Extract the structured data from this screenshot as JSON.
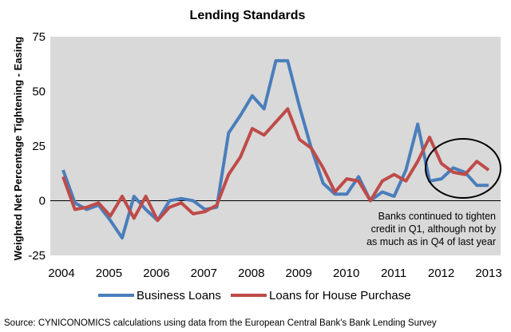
{
  "chart_data": {
    "type": "line",
    "title": "Lending Standards",
    "ylabel": "Weighted Net Percentage Tightening - Easing",
    "xlabel": "",
    "xlim": [
      2004,
      2013
    ],
    "ylim": [
      -25,
      75
    ],
    "x_ticks": [
      "2004",
      "2005",
      "2006",
      "2007",
      "2008",
      "2009",
      "2010",
      "2011",
      "2012",
      "2013"
    ],
    "y_ticks": [
      "-25",
      "0",
      "25",
      "50",
      "75"
    ],
    "grid": "none",
    "legend_position": "bottom",
    "annotation": {
      "lines": [
        "Banks continued to tighten",
        "credit in Q1, although not by",
        "as much as in Q4 of last year"
      ]
    },
    "source": "Source: CYNICONOMICS calculations using data from the European Central Bank's Bank Lending Survey",
    "series": [
      {
        "name": "Business Loans",
        "color": "#4a7ebb",
        "x": [
          2004.0,
          2004.25,
          2004.5,
          2004.75,
          2005.0,
          2005.25,
          2005.5,
          2005.75,
          2006.0,
          2006.25,
          2006.5,
          2006.75,
          2007.0,
          2007.25,
          2007.5,
          2007.75,
          2008.0,
          2008.25,
          2008.5,
          2008.75,
          2009.0,
          2009.25,
          2009.5,
          2009.75,
          2010.0,
          2010.25,
          2010.5,
          2010.75,
          2011.0,
          2011.25,
          2011.5,
          2011.75,
          2012.0,
          2012.25,
          2012.5,
          2012.75,
          2013.0
        ],
        "y": [
          14,
          -1,
          -4,
          -2,
          -9,
          -17,
          2,
          -4,
          -9,
          0,
          1,
          0,
          -4,
          -3,
          31,
          39,
          48,
          42,
          64,
          64,
          43,
          24,
          8,
          3,
          3,
          11,
          0,
          4,
          2,
          14,
          35,
          9,
          10,
          15,
          13,
          7,
          7
        ]
      },
      {
        "name": "Loans for House Purchase",
        "color": "#be4b48",
        "x": [
          2004.0,
          2004.25,
          2004.5,
          2004.75,
          2005.0,
          2005.25,
          2005.5,
          2005.75,
          2006.0,
          2006.25,
          2006.5,
          2006.75,
          2007.0,
          2007.25,
          2007.5,
          2007.75,
          2008.0,
          2008.25,
          2008.5,
          2008.75,
          2009.0,
          2009.25,
          2009.5,
          2009.75,
          2010.0,
          2010.25,
          2010.5,
          2010.75,
          2011.0,
          2011.25,
          2011.5,
          2011.75,
          2012.0,
          2012.25,
          2012.5,
          2012.75,
          2013.0
        ],
        "y": [
          11,
          -4,
          -3,
          -1,
          -7,
          2,
          -8,
          2,
          -9,
          -3,
          -1,
          -6,
          -5,
          -2,
          12,
          20,
          33,
          30,
          36,
          42,
          28,
          24,
          15,
          4,
          10,
          9,
          0,
          9,
          12,
          9,
          18,
          29,
          17,
          13,
          12,
          18,
          14
        ]
      }
    ]
  }
}
